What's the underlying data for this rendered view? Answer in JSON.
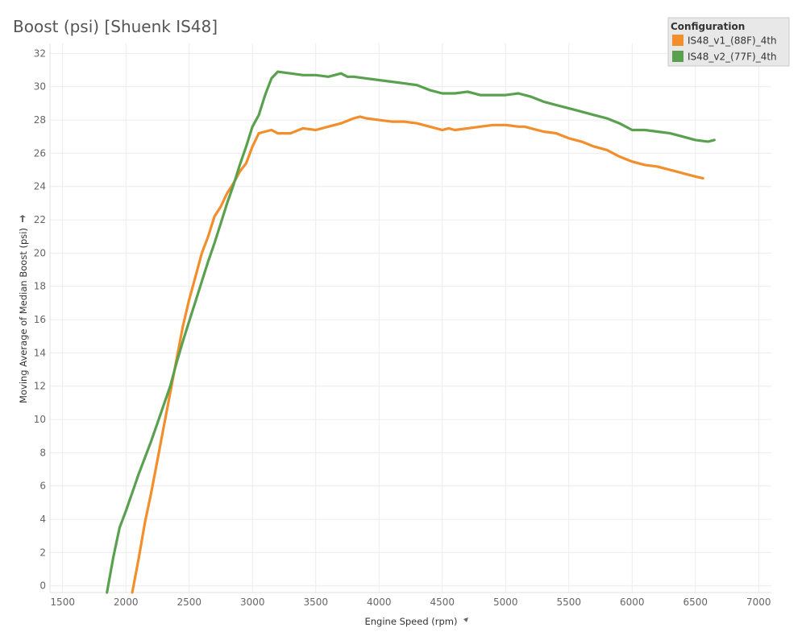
{
  "chart_data": {
    "type": "line",
    "title": "Boost (psi) [Shuenk IS48]",
    "xlabel": "Engine Speed (rpm)",
    "ylabel": "Moving Average of Median Boost (psi)",
    "xlim": [
      1400,
      7100
    ],
    "ylim": [
      -0.4,
      32.6
    ],
    "x_ticks": [
      1500,
      2000,
      2500,
      3000,
      3500,
      4000,
      4500,
      5000,
      5500,
      6000,
      6500,
      7000
    ],
    "y_ticks": [
      0,
      2,
      4,
      6,
      8,
      10,
      12,
      14,
      16,
      18,
      20,
      22,
      24,
      26,
      28,
      30,
      32
    ],
    "grid": true,
    "legend": {
      "title": "Configuration",
      "position": "top-right"
    },
    "series": [
      {
        "name": "IS48_v1_(88F)_4th",
        "color": "#f28e2b",
        "points": [
          [
            2050,
            -0.4
          ],
          [
            2100,
            1.6
          ],
          [
            2150,
            3.8
          ],
          [
            2200,
            5.6
          ],
          [
            2250,
            7.6
          ],
          [
            2300,
            9.6
          ],
          [
            2350,
            11.6
          ],
          [
            2400,
            13.6
          ],
          [
            2450,
            15.6
          ],
          [
            2500,
            17.2
          ],
          [
            2550,
            18.6
          ],
          [
            2600,
            20.0
          ],
          [
            2650,
            21.0
          ],
          [
            2700,
            22.2
          ],
          [
            2750,
            22.8
          ],
          [
            2800,
            23.6
          ],
          [
            2850,
            24.2
          ],
          [
            2900,
            24.9
          ],
          [
            2950,
            25.4
          ],
          [
            3000,
            26.4
          ],
          [
            3050,
            27.2
          ],
          [
            3100,
            27.3
          ],
          [
            3150,
            27.4
          ],
          [
            3200,
            27.2
          ],
          [
            3300,
            27.2
          ],
          [
            3400,
            27.5
          ],
          [
            3500,
            27.4
          ],
          [
            3600,
            27.6
          ],
          [
            3700,
            27.8
          ],
          [
            3800,
            28.1
          ],
          [
            3850,
            28.2
          ],
          [
            3900,
            28.1
          ],
          [
            4000,
            28.0
          ],
          [
            4100,
            27.9
          ],
          [
            4200,
            27.9
          ],
          [
            4300,
            27.8
          ],
          [
            4400,
            27.6
          ],
          [
            4500,
            27.4
          ],
          [
            4550,
            27.5
          ],
          [
            4600,
            27.4
          ],
          [
            4700,
            27.5
          ],
          [
            4800,
            27.6
          ],
          [
            4900,
            27.7
          ],
          [
            5000,
            27.7
          ],
          [
            5100,
            27.6
          ],
          [
            5150,
            27.6
          ],
          [
            5200,
            27.5
          ],
          [
            5300,
            27.3
          ],
          [
            5400,
            27.2
          ],
          [
            5500,
            26.9
          ],
          [
            5600,
            26.7
          ],
          [
            5700,
            26.4
          ],
          [
            5800,
            26.2
          ],
          [
            5900,
            25.8
          ],
          [
            6000,
            25.5
          ],
          [
            6100,
            25.3
          ],
          [
            6200,
            25.2
          ],
          [
            6300,
            25.0
          ],
          [
            6400,
            24.8
          ],
          [
            6500,
            24.6
          ],
          [
            6560,
            24.5
          ]
        ]
      },
      {
        "name": "IS48_v2_(77F)_4th",
        "color": "#59a14f",
        "points": [
          [
            1850,
            -0.4
          ],
          [
            1900,
            1.7
          ],
          [
            1950,
            3.5
          ],
          [
            2000,
            4.5
          ],
          [
            2050,
            5.6
          ],
          [
            2100,
            6.7
          ],
          [
            2150,
            7.7
          ],
          [
            2200,
            8.7
          ],
          [
            2250,
            9.8
          ],
          [
            2300,
            10.9
          ],
          [
            2350,
            12.0
          ],
          [
            2400,
            13.4
          ],
          [
            2450,
            14.7
          ],
          [
            2500,
            15.9
          ],
          [
            2550,
            17.1
          ],
          [
            2600,
            18.3
          ],
          [
            2650,
            19.5
          ],
          [
            2700,
            20.6
          ],
          [
            2750,
            21.8
          ],
          [
            2800,
            23.0
          ],
          [
            2850,
            24.1
          ],
          [
            2900,
            25.3
          ],
          [
            2950,
            26.4
          ],
          [
            3000,
            27.6
          ],
          [
            3050,
            28.3
          ],
          [
            3100,
            29.5
          ],
          [
            3150,
            30.5
          ],
          [
            3200,
            30.9
          ],
          [
            3300,
            30.8
          ],
          [
            3400,
            30.7
          ],
          [
            3500,
            30.7
          ],
          [
            3600,
            30.6
          ],
          [
            3700,
            30.8
          ],
          [
            3750,
            30.6
          ],
          [
            3800,
            30.6
          ],
          [
            3900,
            30.5
          ],
          [
            4000,
            30.4
          ],
          [
            4100,
            30.3
          ],
          [
            4200,
            30.2
          ],
          [
            4300,
            30.1
          ],
          [
            4400,
            29.8
          ],
          [
            4500,
            29.6
          ],
          [
            4600,
            29.6
          ],
          [
            4700,
            29.7
          ],
          [
            4800,
            29.5
          ],
          [
            4900,
            29.5
          ],
          [
            5000,
            29.5
          ],
          [
            5100,
            29.6
          ],
          [
            5200,
            29.4
          ],
          [
            5300,
            29.1
          ],
          [
            5400,
            28.9
          ],
          [
            5500,
            28.7
          ],
          [
            5600,
            28.5
          ],
          [
            5700,
            28.3
          ],
          [
            5800,
            28.1
          ],
          [
            5900,
            27.8
          ],
          [
            6000,
            27.4
          ],
          [
            6100,
            27.4
          ],
          [
            6200,
            27.3
          ],
          [
            6300,
            27.2
          ],
          [
            6400,
            27.0
          ],
          [
            6500,
            26.8
          ],
          [
            6600,
            26.7
          ],
          [
            6650,
            26.8
          ]
        ]
      }
    ]
  }
}
